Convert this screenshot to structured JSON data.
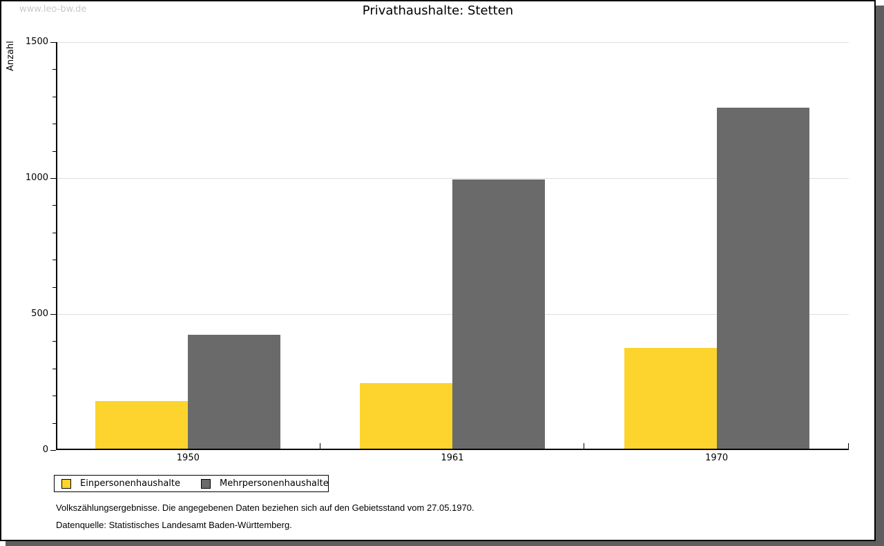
{
  "watermark": "www.leo-bw.de",
  "header": {
    "title": "Privathaushalte: Stetten"
  },
  "chart_data": {
    "type": "bar",
    "title": "Privathaushalte: Stetten",
    "xlabel": "",
    "ylabel": "Anzahl",
    "categories": [
      "1950",
      "1961",
      "1970"
    ],
    "series": [
      {
        "name": "Einpersonenhaushalte",
        "color": "#FCD42D",
        "values": [
          175,
          240,
          370
        ]
      },
      {
        "name": "Mehrpersonenhaushalte",
        "color": "#6A6A6A",
        "values": [
          420,
          990,
          1255
        ]
      }
    ],
    "ylim": [
      0,
      1500
    ],
    "yticks_major": [
      0,
      500,
      1000,
      1500
    ],
    "ytick_minor_step": 100,
    "grid": "horizontal-major-light",
    "legend_position": "bottom-left"
  },
  "footer": {
    "line1": "Volkszählungsergebnisse. Die angegebenen Daten beziehen sich auf den Gebietsstand vom 27.05.1970.",
    "line2": "Datenquelle: Statistisches Landesamt Baden-Württemberg."
  },
  "colors": {
    "bar_yellow": "#FCD42D",
    "bar_gray": "#6A6A6A",
    "gridline": "#DDDDDD",
    "watermark_text": "#C9C9C9",
    "frame_shadow": "#5E5E5E",
    "axis": "#000000"
  }
}
